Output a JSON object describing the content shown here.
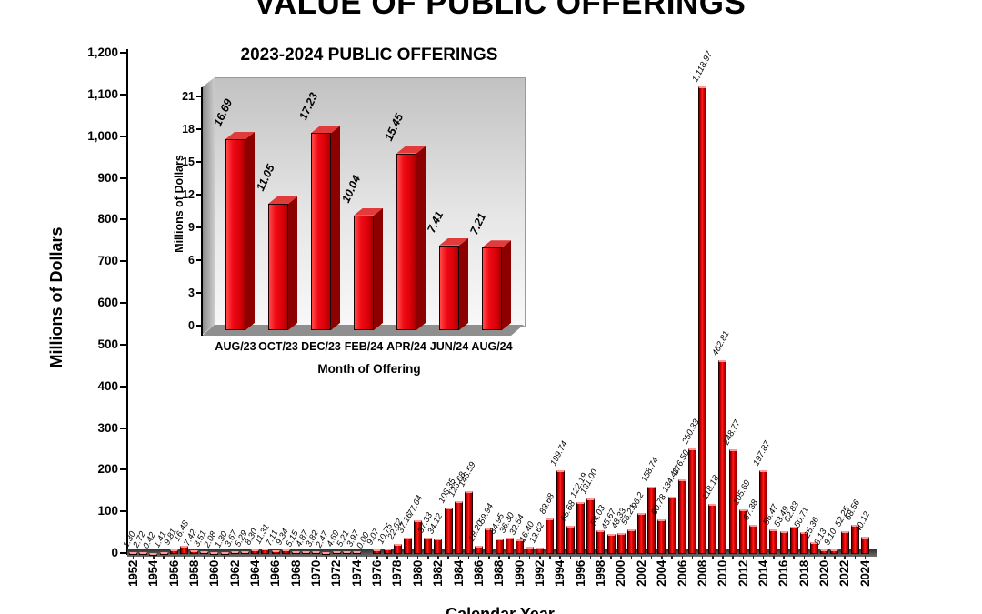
{
  "colors": {
    "bar_red": "#e30613",
    "bar_side_red": "#8c0000",
    "axis_black": "#000000",
    "wall_gray": "#d9d9d9",
    "floor_gray": "#8f8f8f",
    "base_band_gray": "#4a4a4a"
  },
  "chart_data": [
    {
      "type": "bar",
      "title": "VALUE OF PUBLIC OFFERINGS",
      "xlabel": "Calendar Year",
      "ylabel": "Millions of Dollars",
      "ylim": [
        0,
        1200
      ],
      "grid": false,
      "legend": "none",
      "yticks": [
        "0",
        "100",
        "200",
        "300",
        "400",
        "500",
        "600",
        "700",
        "800",
        "900",
        "1,000",
        "1,100",
        "1,200"
      ],
      "xticks": [
        "1952",
        "1954",
        "1956",
        "1958",
        "1960",
        "1962",
        "1964",
        "1966",
        "1968",
        "1970",
        "1972",
        "1974",
        "1976",
        "1978",
        "1980",
        "1982",
        "1984",
        "1986",
        "1988",
        "1990",
        "1992",
        "1994",
        "1996",
        "1998",
        "2000",
        "2002",
        "2004",
        "2006",
        "2008",
        "2010",
        "2012",
        "2014",
        "2016",
        "2018",
        "2020",
        "2022",
        "2024"
      ],
      "categories": [
        1952,
        1953,
        1954,
        1955,
        1956,
        1957,
        1958,
        1959,
        1960,
        1961,
        1962,
        1963,
        1964,
        1965,
        1966,
        1967,
        1968,
        1969,
        1970,
        1971,
        1972,
        1973,
        1974,
        1975,
        1976,
        1977,
        1978,
        1979,
        1980,
        1981,
        1982,
        1983,
        1984,
        1985,
        1986,
        1987,
        1988,
        1989,
        1990,
        1991,
        1992,
        1993,
        1994,
        1995,
        1996,
        1997,
        1998,
        1999,
        2000,
        2001,
        2002,
        2003,
        2004,
        2005,
        2006,
        2007,
        2008,
        2009,
        2010,
        2011,
        2012,
        2013,
        2014,
        2015,
        2016,
        2017,
        2018,
        2019,
        2020,
        2021,
        2022,
        2023,
        2024
      ],
      "values": [
        1.3,
        2.72,
        0.42,
        1.41,
        9.81,
        16.48,
        7.42,
        3.51,
        2.08,
        1.3,
        3.67,
        5.29,
        8.3,
        11.31,
        7.11,
        9.34,
        5.15,
        4.87,
        3.82,
        2.47,
        4.69,
        5.21,
        3.97,
        0.0,
        9.07,
        10.75,
        22.62,
        37.16,
        77.64,
        37.33,
        34.12,
        108.35,
        123.68,
        148.59,
        18.2,
        59.94,
        34.95,
        36.3,
        32.54,
        16.4,
        13.62,
        83.68,
        199.74,
        65.68,
        122.19,
        131.0,
        54.03,
        45.67,
        48.33,
        56.21,
        96.2,
        158.74,
        80.78,
        134.41,
        176.5,
        250.33,
        1118.97,
        118.18,
        462.81,
        248.77,
        105.69,
        67.38,
        197.87,
        56.47,
        53.49,
        62.83,
        50.71,
        25.36,
        8.13,
        9.1,
        52.25,
        68.56,
        40.12
      ],
      "value_labels": [
        "1.30",
        "2.72",
        "0.42",
        "1.41",
        "9.81",
        "16.48",
        "7.42",
        "3.51",
        "2.08",
        "1.30",
        "3.67",
        "5.29",
        "8.30",
        "11.31",
        "7.11",
        "9.34",
        "5.15",
        "4.87",
        "3.82",
        "2.47",
        "4.69",
        "5.21",
        "3.97",
        "0.00",
        "9.07",
        "10.75",
        "22.62",
        "37.16",
        "77.64",
        "37.33",
        "34.12",
        "108.35",
        "123.68",
        "148.59",
        "18.20",
        "59.94",
        "34.95",
        "36.30",
        "32.54",
        "16.40",
        "13.62",
        "83.68",
        "199.74",
        "65.68",
        "122.19",
        "131.00",
        "54.03",
        "45.67",
        "48.33",
        "56.21",
        "96.2",
        "158.74",
        "80.78",
        "134.41",
        "176.50",
        "250.33",
        "1,118.97",
        "118.18",
        "462.81",
        "248.77",
        "105.69",
        "67.38",
        "197.87",
        "56.47",
        "53.49",
        "62.83",
        "50.71",
        "25.36",
        "8.13",
        "9.10",
        "52.25",
        "68.56",
        "40.12"
      ]
    },
    {
      "type": "bar",
      "style": "3d",
      "title": "2023-2024 PUBLIC OFFERINGS",
      "xlabel": "Month of Offering",
      "ylabel": "Millions of Dollars",
      "ylim": [
        0,
        21
      ],
      "yticks": [
        0,
        3,
        6,
        9,
        12,
        15,
        18,
        21
      ],
      "categories": [
        "AUG/23",
        "OCT/23",
        "DEC/23",
        "FEB/24",
        "APR/24",
        "JUN/24",
        "AUG/24"
      ],
      "values": [
        16.69,
        11.05,
        17.23,
        10.04,
        15.45,
        7.41,
        7.21
      ],
      "value_labels": [
        "16.69",
        "11.05",
        "17.23",
        "10.04",
        "15.45",
        "7.41",
        "7.21"
      ]
    }
  ]
}
